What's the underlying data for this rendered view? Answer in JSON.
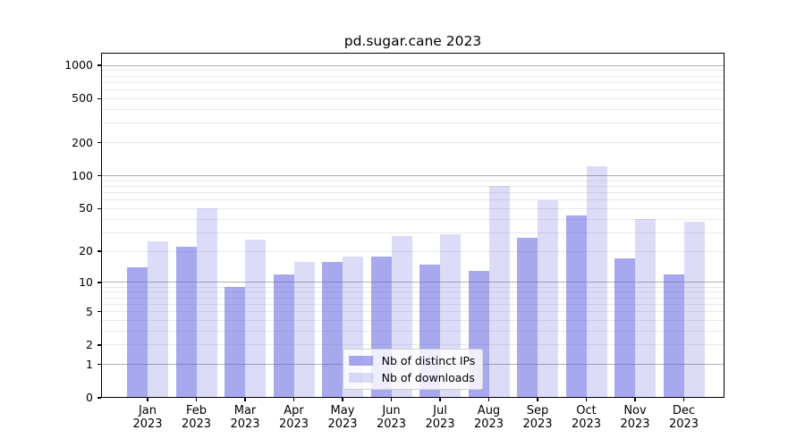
{
  "page": {
    "background": "#ffffff"
  },
  "chart_data": {
    "type": "bar",
    "title": "pd.sugar.cane 2023",
    "categories": [
      "Jan",
      "Feb",
      "Mar",
      "Apr",
      "May",
      "Jun",
      "Jul",
      "Aug",
      "Sep",
      "Oct",
      "Nov",
      "Dec"
    ],
    "category_year": "2023",
    "series": [
      {
        "name": "Nb of distinct IPs",
        "color": "rgba(96,96,226,0.55)",
        "values": [
          14,
          22,
          9,
          12,
          16,
          18,
          15,
          13,
          27,
          43,
          17,
          12
        ]
      },
      {
        "name": "Nb of downloads",
        "color": "rgba(96,96,226,0.22)",
        "values": [
          25,
          50,
          26,
          16,
          18,
          28,
          29,
          80,
          60,
          123,
          40,
          38
        ]
      }
    ],
    "xlabel": "",
    "ylabel": "",
    "yscale": "log1p",
    "ylim": [
      0,
      1300
    ],
    "yticks": [
      1000,
      500,
      200,
      100,
      50,
      20,
      10,
      5,
      2,
      1,
      0
    ],
    "yticks_minor": [
      2,
      3,
      4,
      5,
      6,
      7,
      8,
      9,
      20,
      30,
      40,
      50,
      60,
      70,
      80,
      90,
      200,
      300,
      400,
      500,
      600,
      700,
      800,
      900
    ],
    "grid": {
      "on": true,
      "major_values": [
        1,
        10,
        100,
        1000
      ],
      "major_color": "#b0b0b0",
      "minor_color": "#e9e9e9"
    },
    "legend_position": "lower center",
    "spine_color": "#000000"
  }
}
